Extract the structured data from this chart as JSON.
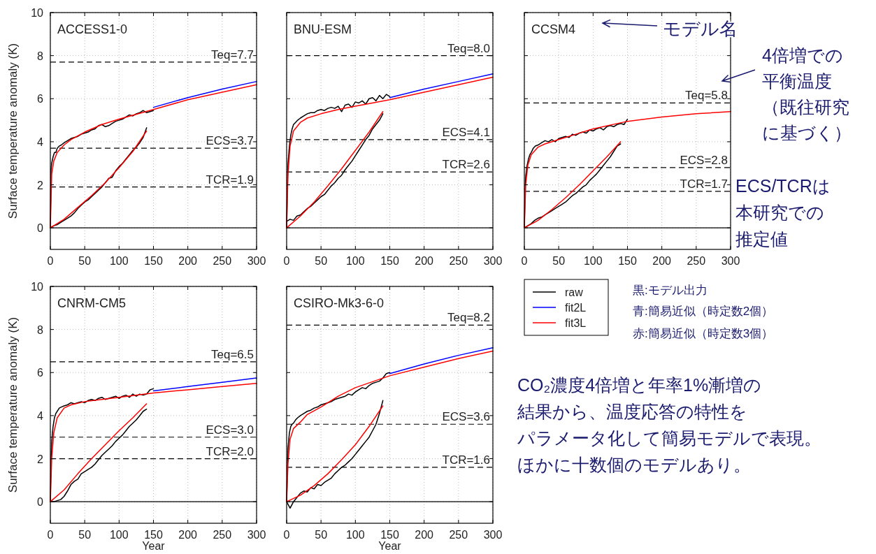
{
  "chart_data": [
    {
      "type": "line",
      "title": "ACCESS1-0",
      "ylabel": "Surface temperature anomaly (K)",
      "xlim": [
        0,
        300
      ],
      "ylim": [
        -1,
        10
      ],
      "xticks": [
        0,
        50,
        100,
        150,
        200,
        250,
        300
      ],
      "yticks": [
        0,
        2,
        4,
        6,
        8,
        10
      ],
      "grid": true,
      "ref_lines": [
        {
          "axis": "y",
          "value": 0,
          "line_style": "solid"
        },
        {
          "axis": "y",
          "value": 7.7,
          "label": "Teq=7.7",
          "line_style": "dashed"
        },
        {
          "axis": "y",
          "value": 3.7,
          "label": "ECS=3.7",
          "line_style": "dashed"
        },
        {
          "axis": "y",
          "value": 1.9,
          "label": "TCR=1.9",
          "line_style": "dashed"
        }
      ],
      "series": [
        {
          "color": "#000000",
          "x": [
            0,
            1,
            2,
            4,
            6,
            8,
            10,
            13,
            16,
            20,
            25,
            30,
            35,
            40,
            45,
            50,
            55,
            60,
            65,
            70,
            75,
            80,
            85,
            90,
            95,
            100,
            105,
            110,
            115,
            120,
            125,
            130,
            135,
            140,
            145,
            150
          ],
          "values": [
            0,
            2.7,
            3.0,
            3.3,
            3.5,
            3.5,
            3.7,
            3.8,
            3.85,
            3.95,
            4.05,
            4.15,
            4.2,
            4.25,
            4.35,
            4.4,
            4.45,
            4.55,
            4.6,
            4.75,
            4.8,
            4.7,
            4.75,
            4.85,
            4.95,
            5.0,
            5.05,
            5.15,
            5.25,
            5.2,
            5.3,
            5.35,
            5.45,
            5.35,
            5.4,
            5.45
          ]
        },
        {
          "color": "#000000",
          "x": [
            0,
            5,
            10,
            15,
            20,
            25,
            30,
            35,
            40,
            45,
            50,
            55,
            60,
            65,
            70,
            75,
            80,
            85,
            90,
            95,
            100,
            105,
            110,
            115,
            120,
            125,
            130,
            135,
            140
          ],
          "values": [
            0,
            0.1,
            0.15,
            0.25,
            0.35,
            0.45,
            0.55,
            0.7,
            0.9,
            1.05,
            1.2,
            1.3,
            1.45,
            1.6,
            1.75,
            1.9,
            2.1,
            2.3,
            2.35,
            2.65,
            2.85,
            3.0,
            3.2,
            3.4,
            3.6,
            3.75,
            3.95,
            4.2,
            4.65
          ]
        },
        {
          "color": "#0000ff",
          "x": [
            150,
            200,
            250,
            300
          ],
          "values": [
            5.6,
            6.05,
            6.45,
            6.8
          ]
        },
        {
          "color": "#ff0000",
          "x": [
            0,
            2,
            5,
            10,
            20,
            30,
            50,
            75,
            100,
            150,
            200,
            250,
            300
          ],
          "values": [
            0,
            2.5,
            3.1,
            3.5,
            3.85,
            4.1,
            4.45,
            4.8,
            5.05,
            5.5,
            5.95,
            6.3,
            6.65
          ]
        },
        {
          "color": "#ff0000",
          "x": [
            0,
            20,
            40,
            60,
            80,
            100,
            120,
            140
          ],
          "values": [
            0,
            0.4,
            0.95,
            1.5,
            2.1,
            2.8,
            3.55,
            4.5
          ]
        }
      ]
    },
    {
      "type": "line",
      "title": "BNU-ESM",
      "xlim": [
        0,
        300
      ],
      "ylim": [
        -1,
        10
      ],
      "xticks": [
        0,
        50,
        100,
        150,
        200,
        250,
        300
      ],
      "yticks": [
        0,
        2,
        4,
        6,
        8,
        10
      ],
      "grid": true,
      "tick_labels": "x",
      "ref_lines": [
        {
          "axis": "y",
          "value": 0,
          "line_style": "solid"
        },
        {
          "axis": "y",
          "value": 8.0,
          "label": "Teq=8.0",
          "line_style": "dashed"
        },
        {
          "axis": "y",
          "value": 4.1,
          "label": "ECS=4.1",
          "line_style": "dashed"
        },
        {
          "axis": "y",
          "value": 2.6,
          "label": "TCR=2.6",
          "line_style": "dashed"
        }
      ],
      "series": [
        {
          "color": "#000000",
          "x": [
            0,
            1,
            2,
            4,
            6,
            8,
            10,
            13,
            16,
            20,
            25,
            30,
            35,
            40,
            45,
            50,
            55,
            60,
            65,
            70,
            75,
            80,
            85,
            90,
            95,
            100,
            105,
            110,
            115,
            120,
            125,
            130,
            135,
            140,
            145,
            150
          ],
          "values": [
            0,
            2.0,
            3.0,
            3.8,
            4.3,
            4.6,
            4.8,
            4.9,
            5.0,
            5.1,
            5.2,
            5.3,
            5.35,
            5.35,
            5.45,
            5.5,
            5.45,
            5.55,
            5.6,
            5.55,
            5.65,
            5.4,
            5.7,
            5.75,
            5.6,
            5.85,
            5.8,
            5.9,
            5.75,
            6.0,
            6.05,
            5.9,
            6.15,
            6.0,
            6.2,
            6.1
          ]
        },
        {
          "color": "#000000",
          "x": [
            0,
            5,
            10,
            15,
            20,
            25,
            30,
            35,
            40,
            45,
            50,
            55,
            60,
            65,
            70,
            75,
            80,
            85,
            90,
            95,
            100,
            105,
            110,
            115,
            120,
            125,
            130,
            135,
            140
          ],
          "values": [
            0.3,
            0.4,
            0.35,
            0.55,
            0.6,
            0.75,
            0.9,
            1.0,
            1.15,
            1.3,
            1.45,
            1.55,
            1.75,
            1.95,
            2.1,
            2.3,
            2.45,
            2.7,
            2.9,
            3.1,
            3.35,
            3.6,
            3.85,
            4.1,
            4.3,
            4.6,
            4.8,
            5.0,
            5.3
          ]
        },
        {
          "color": "#0000ff",
          "x": [
            150,
            200,
            250,
            300
          ],
          "values": [
            6.05,
            6.45,
            6.8,
            7.15
          ]
        },
        {
          "color": "#ff0000",
          "x": [
            0,
            2,
            5,
            10,
            20,
            30,
            50,
            75,
            100,
            150,
            200,
            250,
            300
          ],
          "values": [
            0,
            2.5,
            3.8,
            4.5,
            4.9,
            5.1,
            5.3,
            5.5,
            5.65,
            5.95,
            6.3,
            6.65,
            7.0
          ]
        },
        {
          "color": "#ff0000",
          "x": [
            0,
            20,
            40,
            60,
            80,
            100,
            120,
            140
          ],
          "values": [
            0,
            0.55,
            1.2,
            1.95,
            2.75,
            3.6,
            4.45,
            5.4
          ]
        }
      ]
    },
    {
      "type": "line",
      "title": "CCSM4",
      "xlim": [
        0,
        300
      ],
      "ylim": [
        -1,
        10
      ],
      "xticks": [
        0,
        50,
        100,
        150,
        200,
        250,
        300
      ],
      "yticks": [
        0,
        2,
        4,
        6,
        8,
        10
      ],
      "grid": true,
      "tick_labels": "x",
      "ref_lines": [
        {
          "axis": "y",
          "value": 0,
          "line_style": "solid"
        },
        {
          "axis": "y",
          "value": 5.8,
          "label": "Teq=5.8",
          "line_style": "dashed"
        },
        {
          "axis": "y",
          "value": 2.8,
          "label": "ECS=2.8",
          "line_style": "dashed"
        },
        {
          "axis": "y",
          "value": 1.7,
          "label": "TCR=1.7",
          "line_style": "dashed"
        }
      ],
      "annotations": [
        "モデル名",
        "4倍増での平衡温度（既往研究に基づく）",
        "ECS/TCRは本研究での推定値"
      ],
      "series": [
        {
          "color": "#000000",
          "x": [
            0,
            1,
            2,
            4,
            6,
            8,
            10,
            13,
            16,
            20,
            25,
            30,
            35,
            40,
            45,
            50,
            55,
            60,
            65,
            70,
            75,
            80,
            85,
            90,
            95,
            100,
            105,
            110,
            115,
            120,
            125,
            130,
            135,
            140,
            145,
            150
          ],
          "values": [
            0,
            1.8,
            2.4,
            2.9,
            3.2,
            3.4,
            3.5,
            3.7,
            3.8,
            3.85,
            3.95,
            4.05,
            4.0,
            4.1,
            4.0,
            4.15,
            4.2,
            4.25,
            4.2,
            4.35,
            4.3,
            4.4,
            4.45,
            4.4,
            4.55,
            4.5,
            4.6,
            4.65,
            4.55,
            4.7,
            4.75,
            4.7,
            4.8,
            4.85,
            4.8,
            5.05
          ]
        },
        {
          "color": "#000000",
          "x": [
            0,
            5,
            10,
            15,
            20,
            25,
            30,
            35,
            40,
            45,
            50,
            55,
            60,
            65,
            70,
            75,
            80,
            85,
            90,
            95,
            100,
            105,
            110,
            115,
            120,
            125,
            130,
            135,
            140
          ],
          "values": [
            0,
            0.1,
            0.2,
            0.35,
            0.45,
            0.5,
            0.6,
            0.7,
            0.8,
            0.9,
            1.0,
            1.1,
            1.2,
            1.35,
            1.5,
            1.6,
            1.75,
            1.9,
            2.0,
            2.2,
            2.35,
            2.5,
            2.7,
            2.9,
            3.1,
            3.3,
            3.55,
            3.8,
            3.9
          ]
        },
        {
          "color": "#ff0000",
          "x": [
            0,
            2,
            5,
            10,
            20,
            30,
            50,
            75,
            100,
            150,
            200,
            250,
            300
          ],
          "values": [
            0,
            2.0,
            2.9,
            3.4,
            3.75,
            3.9,
            4.1,
            4.35,
            4.6,
            4.95,
            5.15,
            5.3,
            5.4
          ]
        },
        {
          "color": "#ff0000",
          "x": [
            0,
            20,
            40,
            60,
            80,
            100,
            120,
            140
          ],
          "values": [
            0,
            0.35,
            0.85,
            1.4,
            2.0,
            2.65,
            3.3,
            4.0
          ]
        }
      ]
    },
    {
      "type": "line",
      "title": "CNRM-CM5",
      "xlabel": "Year",
      "ylabel": "Surface temperature anomaly (K)",
      "xlim": [
        0,
        300
      ],
      "ylim": [
        -1,
        10
      ],
      "xticks": [
        0,
        50,
        100,
        150,
        200,
        250,
        300
      ],
      "yticks": [
        0,
        2,
        4,
        6,
        8,
        10
      ],
      "grid": true,
      "ref_lines": [
        {
          "axis": "y",
          "value": 0,
          "line_style": "solid"
        },
        {
          "axis": "y",
          "value": 6.5,
          "label": "Teq=6.5",
          "line_style": "dashed"
        },
        {
          "axis": "y",
          "value": 3.0,
          "label": "ECS=3.0",
          "line_style": "dashed"
        },
        {
          "axis": "y",
          "value": 2.0,
          "label": "TCR=2.0",
          "line_style": "dashed"
        }
      ],
      "series": [
        {
          "color": "#000000",
          "x": [
            0,
            1,
            2,
            4,
            6,
            8,
            10,
            13,
            16,
            20,
            25,
            30,
            35,
            40,
            45,
            50,
            55,
            60,
            65,
            70,
            75,
            80,
            85,
            90,
            95,
            100,
            105,
            110,
            115,
            120,
            125,
            130,
            135,
            140,
            145,
            150
          ],
          "values": [
            0,
            2.0,
            2.8,
            3.5,
            3.9,
            4.1,
            4.2,
            4.35,
            4.4,
            4.45,
            4.5,
            4.6,
            4.55,
            4.6,
            4.65,
            4.6,
            4.7,
            4.75,
            4.7,
            4.8,
            4.85,
            4.75,
            4.8,
            4.85,
            4.9,
            4.8,
            4.9,
            4.95,
            4.85,
            5.0,
            4.9,
            5.0,
            4.95,
            5.0,
            5.2,
            5.25
          ]
        },
        {
          "color": "#000000",
          "x": [
            0,
            5,
            10,
            15,
            20,
            25,
            30,
            35,
            40,
            45,
            50,
            55,
            60,
            65,
            70,
            75,
            80,
            85,
            90,
            95,
            100,
            105,
            110,
            115,
            120,
            125,
            130,
            135,
            140
          ],
          "values": [
            0,
            0,
            0.05,
            0.1,
            0.25,
            0.5,
            0.8,
            0.95,
            1.05,
            1.3,
            1.4,
            1.5,
            1.6,
            1.75,
            1.95,
            2.15,
            2.3,
            2.45,
            2.6,
            2.8,
            2.95,
            3.1,
            3.3,
            3.5,
            3.65,
            3.8,
            4.0,
            4.2,
            4.3
          ]
        },
        {
          "color": "#0000ff",
          "x": [
            150,
            200,
            250,
            300
          ],
          "values": [
            5.15,
            5.35,
            5.55,
            5.75
          ]
        },
        {
          "color": "#ff0000",
          "x": [
            0,
            2,
            5,
            10,
            20,
            30,
            50,
            75,
            100,
            150,
            200,
            250,
            300
          ],
          "values": [
            0,
            2.0,
            3.2,
            3.9,
            4.35,
            4.5,
            4.65,
            4.75,
            4.85,
            5.05,
            5.2,
            5.35,
            5.5
          ]
        },
        {
          "color": "#ff0000",
          "x": [
            0,
            20,
            40,
            60,
            80,
            100,
            120,
            140
          ],
          "values": [
            0,
            0.55,
            1.3,
            2.0,
            2.65,
            3.3,
            3.9,
            4.55
          ]
        }
      ]
    },
    {
      "type": "line",
      "title": "CSIRO-Mk3-6-0",
      "xlabel": "Year",
      "xlim": [
        0,
        300
      ],
      "ylim": [
        -1,
        10
      ],
      "xticks": [
        0,
        50,
        100,
        150,
        200,
        250,
        300
      ],
      "yticks": [
        0,
        2,
        4,
        6,
        8,
        10
      ],
      "grid": true,
      "tick_labels": "x",
      "legend": "right",
      "ref_lines": [
        {
          "axis": "y",
          "value": 0,
          "line_style": "solid"
        },
        {
          "axis": "y",
          "value": 8.2,
          "label": "Teq=8.2",
          "line_style": "dashed"
        },
        {
          "axis": "y",
          "value": 3.6,
          "label": "ECS=3.6",
          "line_style": "dashed"
        },
        {
          "axis": "y",
          "value": 1.6,
          "label": "TCR=1.6",
          "line_style": "dashed"
        }
      ],
      "annotations": [
        "黒:モデル出力",
        "青:簡易近似（時定数2個）",
        "赤:簡易近似（時定数3個）",
        "CO₂濃度4倍増と年率1%漸増の結果から、温度応答の特性をパラメータ化して簡易モデルで表現。ほかに十数個のモデルあり。"
      ],
      "series": [
        {
          "name": "raw",
          "color": "#000000",
          "x": [
            0,
            1,
            2,
            4,
            6,
            8,
            10,
            13,
            16,
            20,
            25,
            30,
            35,
            40,
            45,
            50,
            55,
            60,
            65,
            70,
            75,
            80,
            85,
            90,
            95,
            100,
            105,
            110,
            115,
            120,
            125,
            130,
            135,
            140,
            145,
            150
          ],
          "values": [
            0,
            1.5,
            2.5,
            3.2,
            3.5,
            3.6,
            3.65,
            3.8,
            3.9,
            4.0,
            4.1,
            4.2,
            4.25,
            4.35,
            4.4,
            4.5,
            4.55,
            4.6,
            4.65,
            4.75,
            4.8,
            4.85,
            4.9,
            5.0,
            4.95,
            5.1,
            5.2,
            5.3,
            5.25,
            5.4,
            5.5,
            5.55,
            5.6,
            5.75,
            5.95,
            6.0
          ]
        },
        {
          "color": "#000000",
          "x": [
            0,
            5,
            10,
            15,
            20,
            25,
            30,
            35,
            40,
            45,
            50,
            55,
            60,
            65,
            70,
            75,
            80,
            85,
            90,
            95,
            100,
            105,
            110,
            115,
            120,
            125,
            130,
            135,
            140
          ],
          "values": [
            0,
            -0.3,
            0,
            0.2,
            0.4,
            0.5,
            0.45,
            0.65,
            0.6,
            0.8,
            0.75,
            0.9,
            1.0,
            1.1,
            1.3,
            1.45,
            1.6,
            1.7,
            1.85,
            2.0,
            2.2,
            2.4,
            2.6,
            2.8,
            3.0,
            3.3,
            3.6,
            4.1,
            4.7
          ]
        },
        {
          "name": "fit2L",
          "color": "#0000ff",
          "x": [
            150,
            200,
            250,
            300
          ],
          "values": [
            5.95,
            6.4,
            6.8,
            7.15
          ]
        },
        {
          "name": "fit3L",
          "color": "#ff0000",
          "x": [
            0,
            2,
            5,
            10,
            20,
            30,
            50,
            75,
            100,
            150,
            200,
            250,
            300
          ],
          "values": [
            0,
            1.8,
            2.9,
            3.4,
            3.7,
            4.05,
            4.4,
            4.9,
            5.3,
            5.85,
            6.25,
            6.65,
            7.0
          ]
        },
        {
          "color": "#ff0000",
          "x": [
            0,
            20,
            40,
            60,
            80,
            100,
            120,
            140
          ],
          "values": [
            0,
            0.3,
            0.75,
            1.3,
            1.95,
            2.65,
            3.5,
            4.45
          ]
        }
      ]
    }
  ]
}
